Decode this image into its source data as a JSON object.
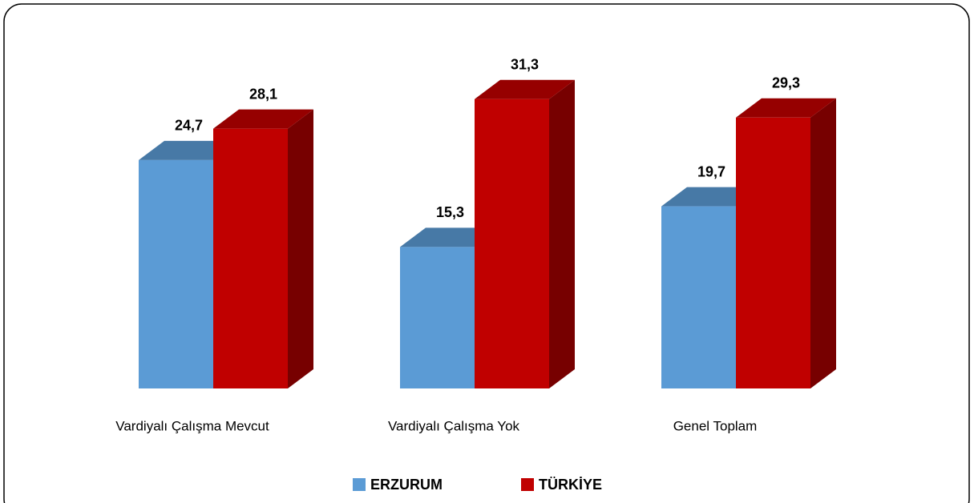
{
  "chart_data": {
    "type": "bar3d",
    "categories": [
      "Vardiyalı Çalışma Mevcut",
      "Vardiyalı Çalışma Yok",
      "Genel Toplam"
    ],
    "series": [
      {
        "name": "ERZURUM",
        "color": "#5b9bd5",
        "values": [
          24.7,
          15.3,
          19.7
        ],
        "value_labels": [
          "24,7",
          "15,3",
          "19,7"
        ]
      },
      {
        "name": "TÜRKİYE",
        "color": "#c00000",
        "values": [
          28.1,
          31.3,
          29.3
        ],
        "value_labels": [
          "28,1",
          "31,3",
          "29,3"
        ]
      }
    ],
    "ylim": [
      0,
      35
    ],
    "legend": "bottom"
  }
}
